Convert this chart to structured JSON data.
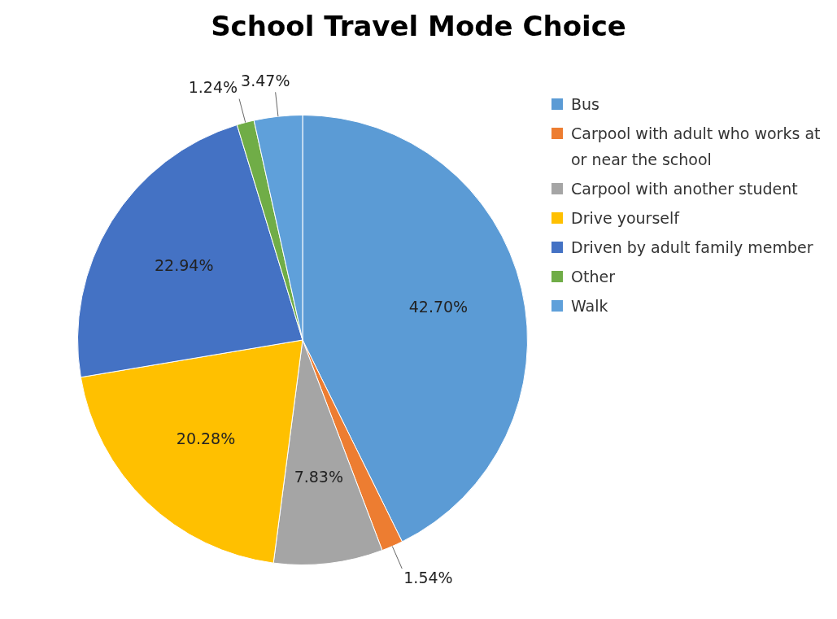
{
  "chart_data": {
    "type": "pie",
    "title": "School Travel Mode Choice",
    "categories": [
      "Bus",
      "Carpool with adult who works at or near the school",
      "Carpool with another student",
      "Drive yourself",
      "Driven by adult family member",
      "Other",
      "Walk"
    ],
    "values": [
      42.7,
      1.54,
      7.83,
      20.28,
      22.94,
      1.24,
      3.47
    ],
    "value_labels": [
      "42.70%",
      "1.54%",
      "7.83%",
      "20.28%",
      "22.94%",
      "1.24%",
      "3.47%"
    ],
    "colors": [
      "#5b9bd5",
      "#ed7d31",
      "#a5a5a5",
      "#ffc000",
      "#4472c4",
      "#70ad47",
      "#5fa0da"
    ],
    "legend": "right"
  }
}
